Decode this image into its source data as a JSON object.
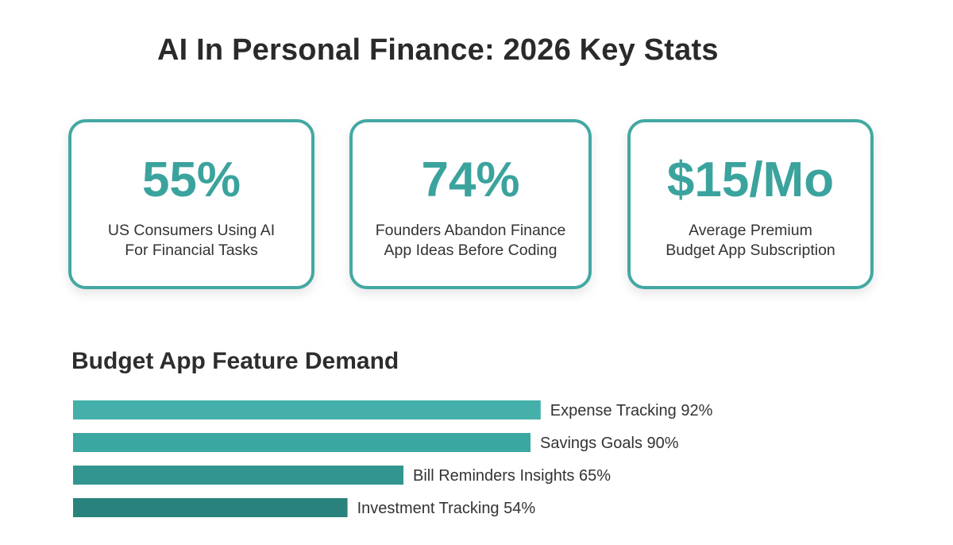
{
  "title": "AI In Personal Finance: 2026 Key Stats",
  "colors": {
    "accent": "#3ba39d",
    "card_border": "#43a8a3"
  },
  "stats": [
    {
      "value": "55%",
      "label_lines": [
        "US Consumers Using AI",
        "For Financial Tasks"
      ]
    },
    {
      "value": "74%",
      "label_lines": [
        "Founders Abandon Finance",
        "App Ideas Before Coding"
      ]
    },
    {
      "value": "$15/Mo",
      "label_lines": [
        "Average Premium",
        "Budget App Subscription"
      ]
    }
  ],
  "chart_data": {
    "type": "bar",
    "orientation": "horizontal",
    "title": "Budget App Feature Demand",
    "categories": [
      "Expense Tracking",
      "Savings Goals",
      "Bill Reminders Insights",
      "Investment Tracking"
    ],
    "values": [
      92,
      90,
      65,
      54
    ],
    "value_suffix": "%",
    "bar_colors": [
      "#44b0a9",
      "#3aa7a1",
      "#32958f",
      "#2a827c"
    ],
    "xlim": [
      0,
      100
    ],
    "grid": false,
    "axes_visible": false
  }
}
